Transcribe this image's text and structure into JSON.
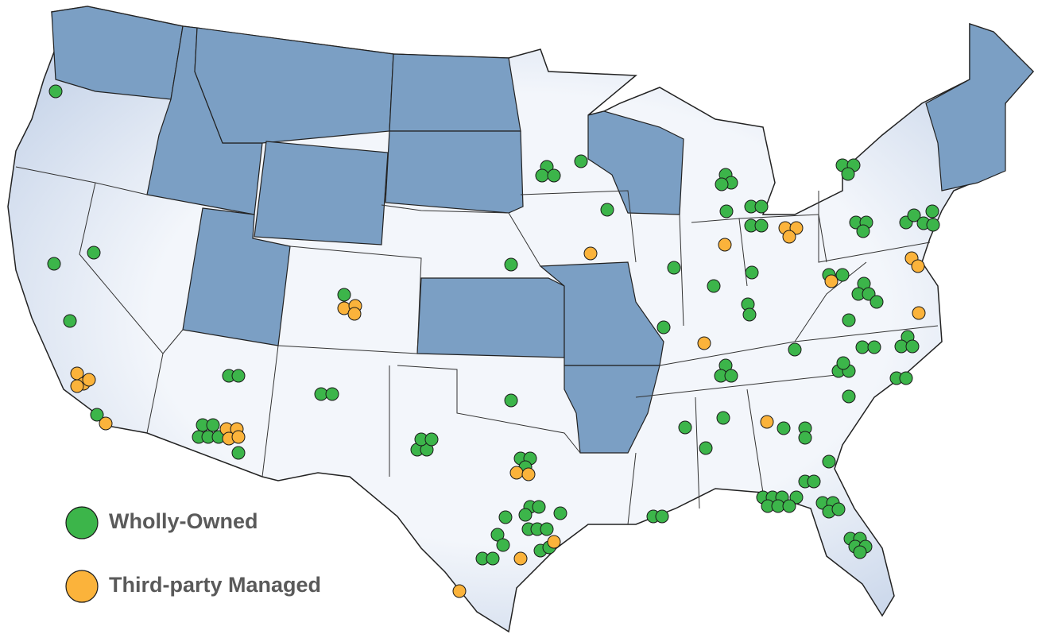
{
  "legend": {
    "items": [
      {
        "label": "Wholly-Owned",
        "color": "#3cb54a"
      },
      {
        "label": "Third-party Managed",
        "color": "#fbb33b"
      }
    ]
  }
}
